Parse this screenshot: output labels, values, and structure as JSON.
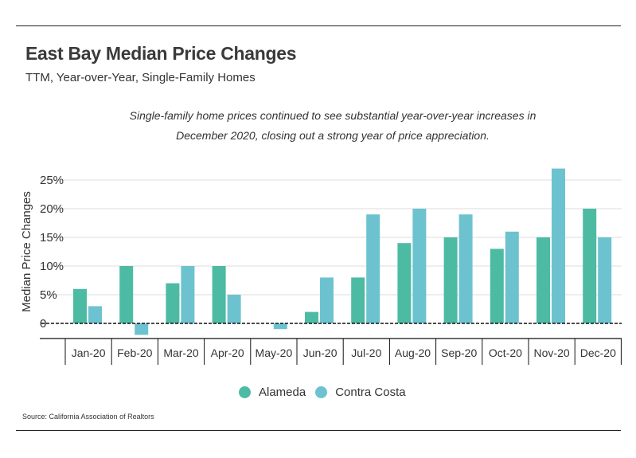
{
  "header": {
    "title": "East Bay Median Price Changes",
    "subtitle": "TTM, Year-over-Year, Single-Family Homes"
  },
  "annotation": "Single-family home prices continued to see substantial year-over-year increases in December 2020, closing out a strong year of price appreciation.",
  "source": "Source:  California Association of Realtors",
  "colors": {
    "alameda": "#4dbba3",
    "contra_costa": "#6cc3cf"
  },
  "chart_data": {
    "type": "bar",
    "title": "East Bay Median Price Changes",
    "subtitle": "TTM, Year-over-Year, Single-Family Homes",
    "xlabel": "",
    "ylabel": "Median Price Changes",
    "ylim": [
      -2.5,
      27
    ],
    "yticks": [
      0,
      5,
      10,
      15,
      20,
      25
    ],
    "ytick_labels": [
      "0",
      "5%",
      "10%",
      "15%",
      "20%",
      "25%"
    ],
    "categories": [
      "Jan-20",
      "Feb-20",
      "Mar-20",
      "Apr-20",
      "May-20",
      "Jun-20",
      "Jul-20",
      "Aug-20",
      "Sep-20",
      "Oct-20",
      "Nov-20",
      "Dec-20"
    ],
    "series": [
      {
        "name": "Alameda",
        "values": [
          6,
          10,
          7,
          10,
          0,
          2,
          8,
          14,
          15,
          13,
          15,
          20
        ]
      },
      {
        "name": "Contra Costa",
        "values": [
          3,
          -2,
          10,
          5,
          -1,
          8,
          19,
          20,
          19,
          16,
          27,
          15
        ]
      }
    ],
    "legend_position": "bottom",
    "grid": true
  }
}
